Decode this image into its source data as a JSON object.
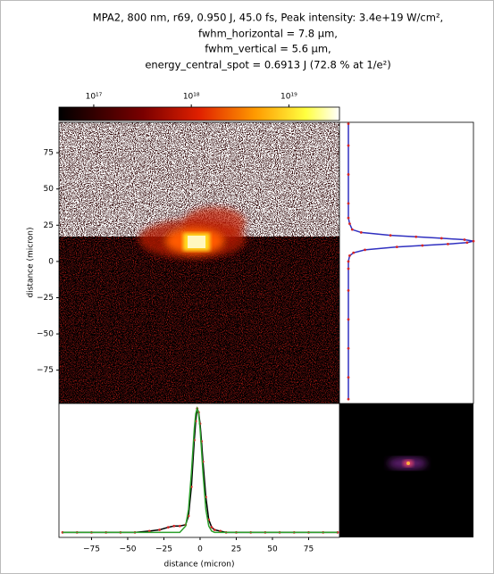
{
  "chart_data": [
    {
      "type": "heatmap",
      "title": [
        "MPA2, 800 nm, r69, 0.950 J, 45.0 fs, Peak intensity: 3.4e+19 W/cm²,",
        "fwhm_horizontal = 7.8 μm,",
        "fwhm_vertical = 5.6 μm,",
        "energy_central_spot = 0.6913 J (72.8 % at 1/e²)"
      ],
      "ylabel": "distance (micron)",
      "ylim": [
        -98,
        96
      ],
      "yticks": [
        {
          "value": 75,
          "label": "75"
        },
        {
          "value": 50,
          "label": "50"
        },
        {
          "value": 25,
          "label": "25"
        },
        {
          "value": 0,
          "label": "0"
        },
        {
          "value": -25,
          "label": "−25"
        },
        {
          "value": -50,
          "label": "−50"
        },
        {
          "value": -75,
          "label": "−75"
        }
      ],
      "colorbar_lim": [
        4.4e+16,
        3.3e+19
      ],
      "colorbar_log": true,
      "colorbar_ticks": [
        {
          "value": 1e+17,
          "label": "10¹⁷"
        },
        {
          "value": 1e+18,
          "label": "10¹⁸"
        },
        {
          "value": 1e+19,
          "label": "10¹⁹"
        }
      ]
    },
    {
      "type": "line",
      "orientation": "horizontal",
      "xlabel": "distance (micron)",
      "xlim": [
        -97.5,
        96.3
      ],
      "xticks": [
        {
          "value": -75,
          "label": "−75"
        },
        {
          "value": -50,
          "label": "−50"
        },
        {
          "value": -25,
          "label": "−25"
        },
        {
          "value": 0,
          "label": "0"
        },
        {
          "value": 25,
          "label": "25"
        },
        {
          "value": 50,
          "label": "50"
        },
        {
          "value": 75,
          "label": "75"
        }
      ],
      "ylim": [
        -0.02,
        1.04
      ],
      "x": [
        -95,
        -85,
        -75,
        -65,
        -55,
        -45,
        -35,
        -28,
        -22,
        -18,
        -14,
        -10,
        -8,
        -6,
        -4,
        -3,
        -2,
        -1,
        0,
        1,
        2,
        4,
        6,
        8,
        10,
        14,
        18,
        25,
        35,
        45,
        55,
        65,
        75,
        85,
        95
      ],
      "series": [
        {
          "color": "#000000",
          "marker_color": "#d62728",
          "values": [
            0.02,
            0.02,
            0.02,
            0.02,
            0.02,
            0.02,
            0.03,
            0.04,
            0.06,
            0.07,
            0.07,
            0.08,
            0.15,
            0.38,
            0.75,
            0.9,
            1.0,
            0.97,
            0.88,
            0.74,
            0.58,
            0.3,
            0.12,
            0.06,
            0.04,
            0.03,
            0.02,
            0.02,
            0.02,
            0.02,
            0.02,
            0.02,
            0.02,
            0.02,
            0.02
          ]
        },
        {
          "color": "#2ca02c",
          "values": [
            0.02,
            0.02,
            0.02,
            0.02,
            0.02,
            0.02,
            0.02,
            0.02,
            0.02,
            0.02,
            0.02,
            0.07,
            0.2,
            0.49,
            0.84,
            0.96,
            1.0,
            0.96,
            0.84,
            0.67,
            0.49,
            0.2,
            0.07,
            0.03,
            0.02,
            0.02,
            0.02,
            0.02,
            0.02,
            0.02,
            0.02,
            0.02,
            0.02,
            0.02,
            0.02
          ]
        }
      ]
    },
    {
      "type": "line",
      "orientation": "vertical",
      "ylim": [
        -98,
        96
      ],
      "xlim": [
        -0.05,
        1.0
      ],
      "x": [
        -95,
        -80,
        -60,
        -40,
        -20,
        -5,
        0,
        4,
        6,
        8,
        10,
        11,
        12,
        13,
        14,
        15,
        16,
        17,
        18,
        20,
        22,
        26,
        30,
        40,
        60,
        80,
        95
      ],
      "series": [
        {
          "color": "#3030c0",
          "marker_color": "#d62728",
          "values": [
            0.02,
            0.02,
            0.02,
            0.02,
            0.02,
            0.02,
            0.02,
            0.03,
            0.06,
            0.15,
            0.4,
            0.6,
            0.8,
            0.95,
            1.0,
            0.93,
            0.75,
            0.55,
            0.35,
            0.12,
            0.05,
            0.03,
            0.02,
            0.02,
            0.02,
            0.02,
            0.02
          ]
        }
      ]
    }
  ]
}
